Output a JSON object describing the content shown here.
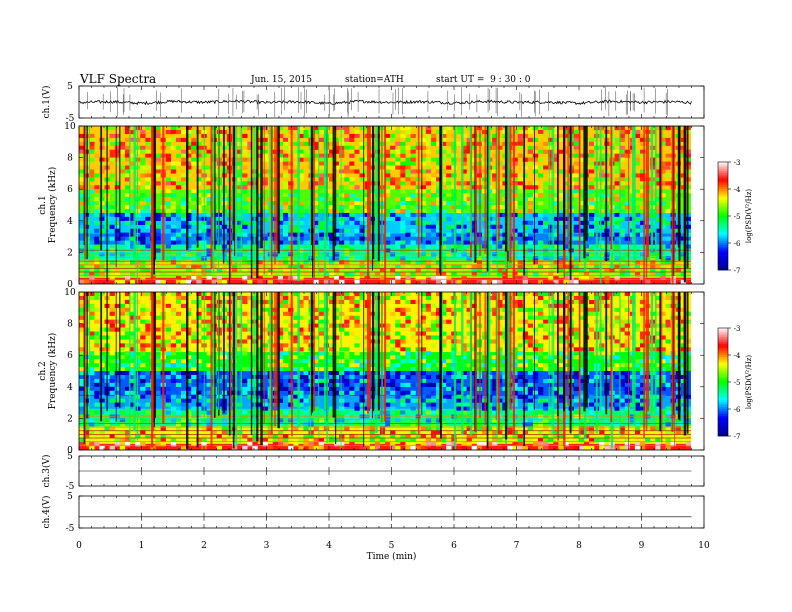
{
  "header": {
    "title": "VLF Spectra",
    "date": "Jun. 15, 2015",
    "station": "station=ATH",
    "start_time": "start UT =  9 : 30 : 0"
  },
  "chart_data": [
    {
      "type": "line",
      "panel": "ch1-waveform",
      "ylabel": "ch.1(V)",
      "ylim": [
        -5,
        5
      ],
      "yticks": [
        "5",
        "-5"
      ],
      "x": [
        0,
        0.5,
        1,
        1.5,
        2,
        2.5,
        3,
        3.5,
        4,
        4.5,
        5,
        5.5,
        6,
        6.5,
        7,
        7.5,
        8,
        8.5,
        9,
        9.5,
        9.8
      ],
      "y": [
        -0.2,
        0.1,
        -0.4,
        0.2,
        -0.1,
        0.3,
        -0.2,
        0.1,
        -0.5,
        0.2,
        -0.1,
        0.1,
        -0.3,
        0.2,
        -0.1,
        0.0,
        -0.4,
        0.2,
        -0.1,
        0.1,
        -0.2
      ]
    },
    {
      "type": "heatmap",
      "panel": "ch1-spectrogram",
      "ylabel": "ch.1\nFrequency (kHz)",
      "ylim": [
        0,
        10
      ],
      "yticks": [
        "0",
        "2",
        "4",
        "6",
        "8",
        "10"
      ],
      "colorbar": {
        "label": "log(PSD(V²/Hz)",
        "range": [
          -7,
          -3
        ],
        "ticks": [
          "-3",
          "-4",
          "-5",
          "-6",
          "-7"
        ]
      },
      "bands": [
        {
          "from": 0.0,
          "to": 0.4,
          "level": -3.6
        },
        {
          "from": 0.4,
          "to": 1.5,
          "level": -4.6
        },
        {
          "from": 1.5,
          "to": 2.5,
          "level": -5.4
        },
        {
          "from": 2.5,
          "to": 3.2,
          "level": -6.0
        },
        {
          "from": 3.2,
          "to": 4.5,
          "level": -5.8
        },
        {
          "from": 4.5,
          "to": 6.0,
          "level": -4.8
        },
        {
          "from": 6.0,
          "to": 10.0,
          "level": -4.2
        }
      ]
    },
    {
      "type": "heatmap",
      "panel": "ch2-spectrogram",
      "ylabel": "ch.2\nFrequency (kHz)",
      "ylim": [
        0,
        10
      ],
      "yticks": [
        "0",
        "2",
        "4",
        "6",
        "8",
        "10"
      ],
      "colorbar": {
        "label": "log(PSD(V²/Hz)",
        "range": [
          -7,
          -3
        ],
        "ticks": [
          "-3",
          "-4",
          "-5",
          "-6",
          "-7"
        ]
      },
      "bands": [
        {
          "from": 0.0,
          "to": 0.4,
          "level": -3.6
        },
        {
          "from": 0.4,
          "to": 1.5,
          "level": -4.4
        },
        {
          "from": 1.5,
          "to": 2.6,
          "level": -5.3
        },
        {
          "from": 2.6,
          "to": 3.4,
          "level": -5.9
        },
        {
          "from": 3.4,
          "to": 5.0,
          "level": -6.1
        },
        {
          "from": 5.0,
          "to": 6.2,
          "level": -5.0
        },
        {
          "from": 6.2,
          "to": 10.0,
          "level": -4.3
        }
      ]
    },
    {
      "type": "line",
      "panel": "ch3-waveform",
      "ylabel": "ch.3(V)",
      "ylim": [
        -5,
        5
      ],
      "yticks": [
        "5",
        "-5"
      ],
      "x": [
        0,
        9.8
      ],
      "y": [
        0,
        0
      ]
    },
    {
      "type": "line",
      "panel": "ch4-waveform",
      "ylabel": "ch.4(V)",
      "ylim": [
        -5,
        5
      ],
      "yticks": [
        "5",
        "-5"
      ],
      "x": [
        0,
        9.8
      ],
      "y": [
        -1.5,
        -1.5
      ]
    }
  ],
  "xaxis": {
    "label": "Time (min)",
    "range": [
      0,
      10
    ],
    "ticks": [
      "0",
      "1",
      "2",
      "3",
      "4",
      "5",
      "6",
      "7",
      "8",
      "9",
      "10"
    ]
  },
  "colors": {
    "scale": [
      "#000090",
      "#0000ff",
      "#00ffff",
      "#00ff00",
      "#ffff00",
      "#ff0000",
      "#ffffff"
    ]
  }
}
